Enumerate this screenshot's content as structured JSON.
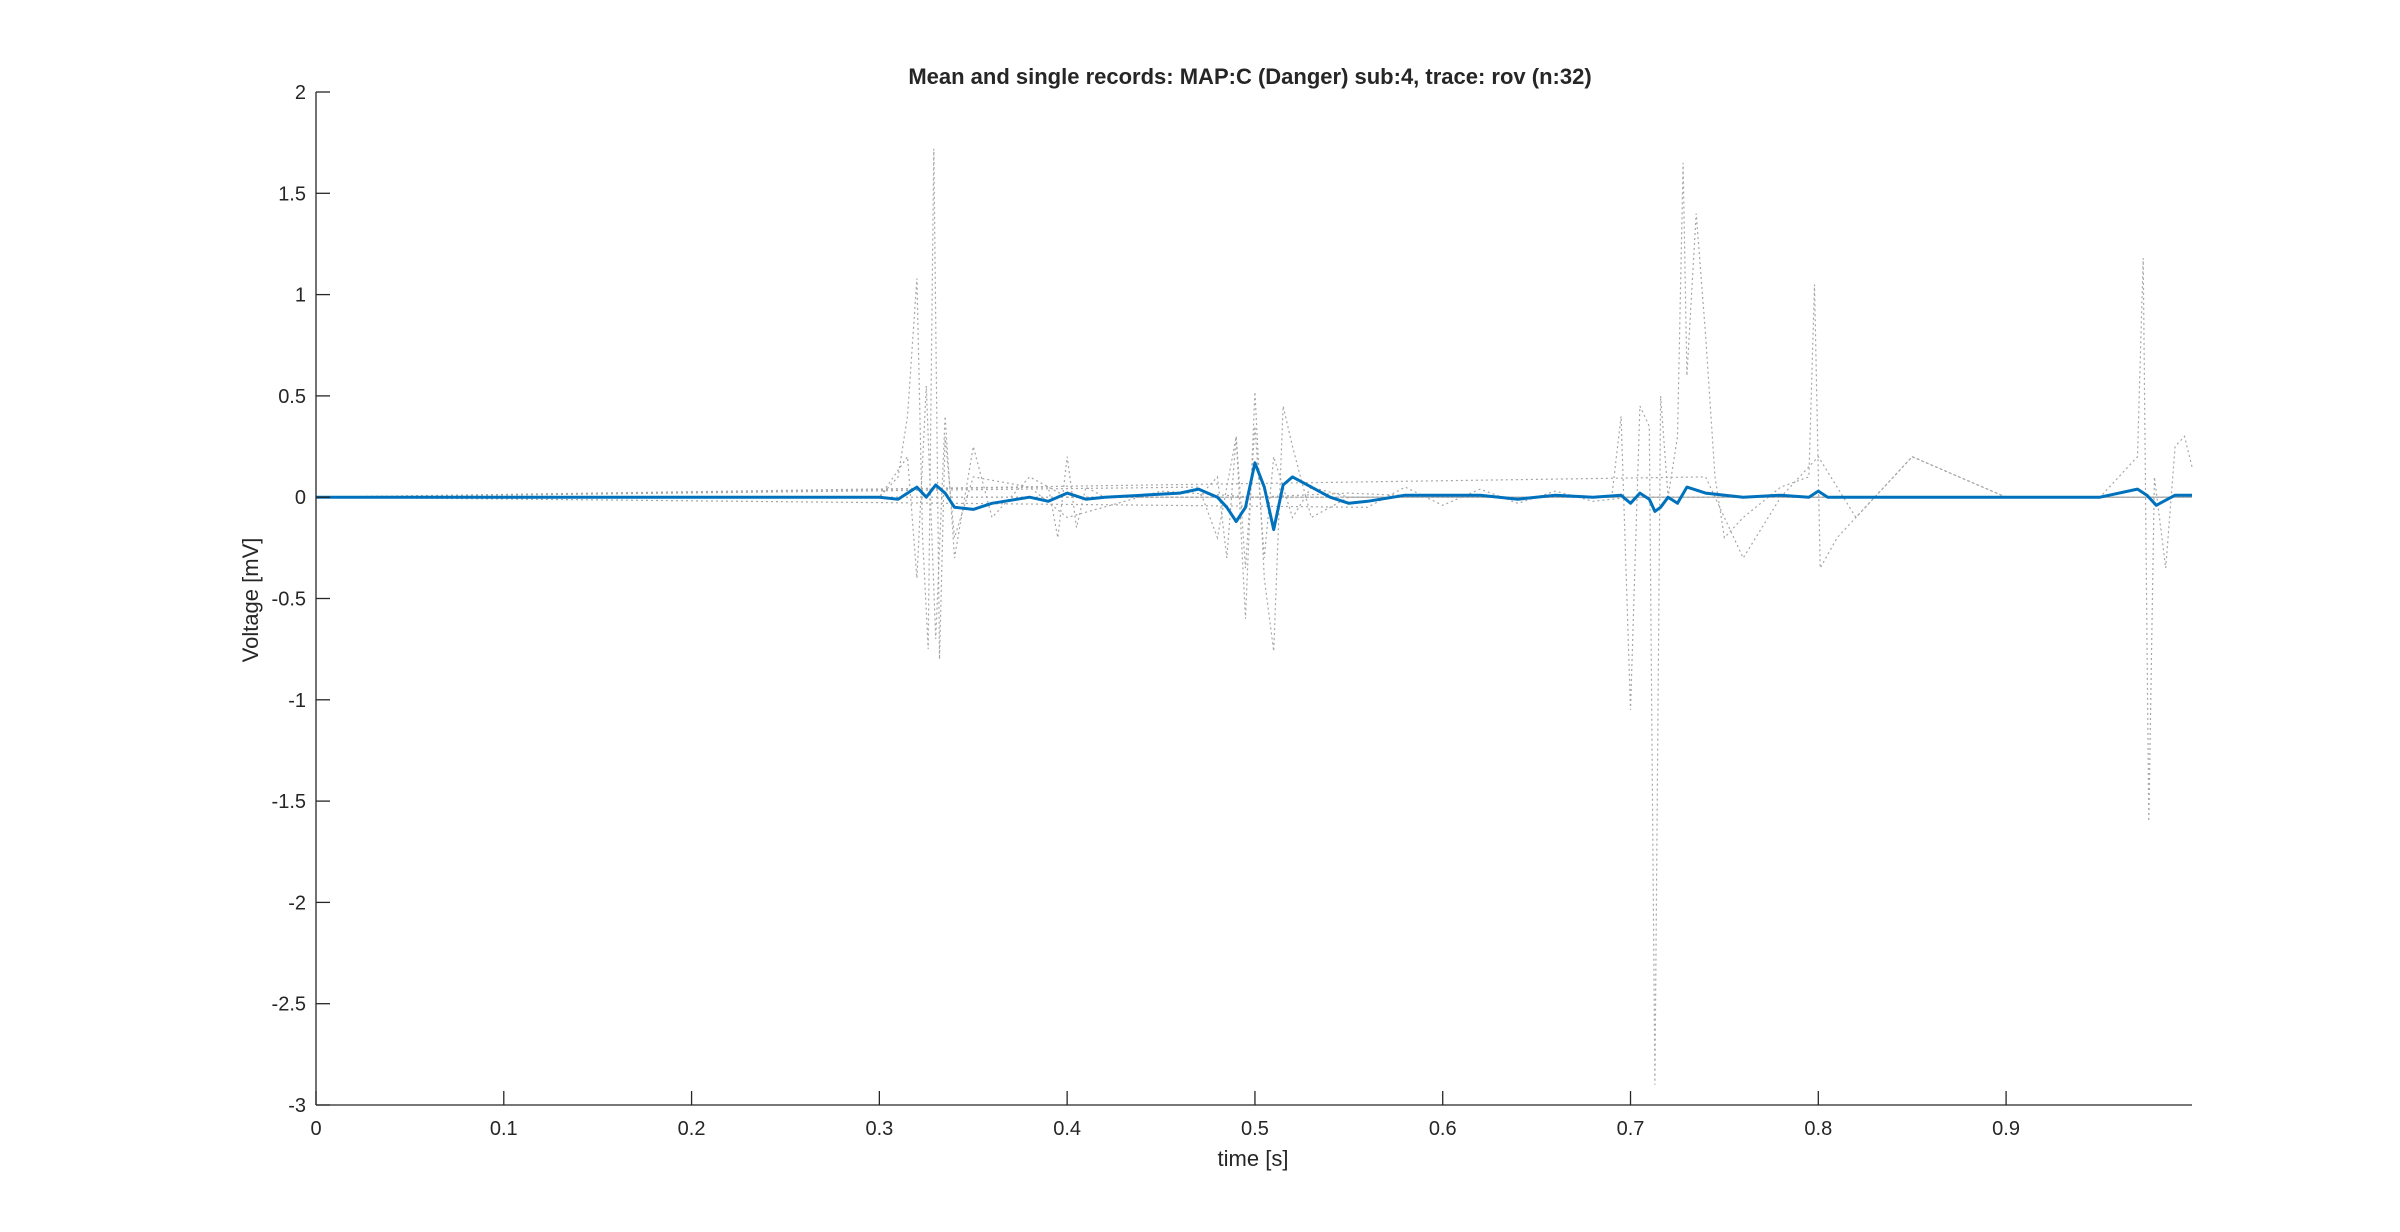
{
  "chart_data": {
    "type": "line",
    "title": "Mean and single records: MAP:C (Danger) sub:4, trace: rov (n:32)",
    "xlabel": "time [s]",
    "ylabel": "Voltage [mV]",
    "xlim": [
      0,
      0.999
    ],
    "ylim": [
      -3,
      2
    ],
    "xticks": [
      0,
      0.1,
      0.2,
      0.3,
      0.4,
      0.5,
      0.6,
      0.7,
      0.8,
      0.9
    ],
    "xtick_labels": [
      "0",
      "0.1",
      "0.2",
      "0.3",
      "0.4",
      "0.5",
      "0.6",
      "0.7",
      "0.8",
      "0.9"
    ],
    "yticks": [
      2,
      1.5,
      1,
      0.5,
      0,
      -0.5,
      -1,
      -1.5,
      -2,
      -2.5,
      -3
    ],
    "ytick_labels": [
      "2",
      "1.5",
      "1",
      "0.5",
      "0",
      "-0.5",
      "-1",
      "-1.5",
      "-2",
      "-2.5",
      "-3"
    ],
    "grid": false,
    "colors": {
      "mean": "#0072BD",
      "single": "#a6a6a6",
      "axis": "#262626"
    },
    "mean_series": {
      "x": [
        0,
        0.1,
        0.2,
        0.3,
        0.31,
        0.315,
        0.32,
        0.325,
        0.33,
        0.335,
        0.34,
        0.35,
        0.36,
        0.38,
        0.39,
        0.4,
        0.41,
        0.42,
        0.44,
        0.46,
        0.47,
        0.48,
        0.485,
        0.49,
        0.495,
        0.5,
        0.505,
        0.51,
        0.515,
        0.52,
        0.53,
        0.54,
        0.55,
        0.56,
        0.58,
        0.6,
        0.62,
        0.64,
        0.66,
        0.68,
        0.695,
        0.7,
        0.705,
        0.71,
        0.713,
        0.716,
        0.72,
        0.725,
        0.73,
        0.74,
        0.76,
        0.78,
        0.795,
        0.8,
        0.805,
        0.82,
        0.85,
        0.9,
        0.95,
        0.97,
        0.975,
        0.98,
        0.99,
        0.999
      ],
      "y": [
        0,
        0,
        0,
        0,
        -0.01,
        0.02,
        0.05,
        0.0,
        0.06,
        0.02,
        -0.05,
        -0.06,
        -0.03,
        0.0,
        -0.02,
        0.02,
        -0.01,
        0.0,
        0.01,
        0.02,
        0.04,
        0.0,
        -0.05,
        -0.12,
        -0.05,
        0.17,
        0.05,
        -0.16,
        0.06,
        0.1,
        0.05,
        0.0,
        -0.03,
        -0.02,
        0.01,
        0.01,
        0.01,
        -0.01,
        0.01,
        0.0,
        0.01,
        -0.03,
        0.02,
        -0.01,
        -0.07,
        -0.05,
        0.0,
        -0.03,
        0.05,
        0.02,
        0.0,
        0.01,
        0.0,
        0.03,
        0.0,
        0.0,
        0.0,
        0.0,
        0.0,
        0.04,
        0.01,
        -0.04,
        0.01,
        0.01
      ]
    },
    "single_records": [
      {
        "x": [
          0,
          0.3,
          0.31,
          0.315,
          0.32,
          0.323,
          0.326,
          0.329,
          0.332,
          0.335,
          0.34,
          0.35,
          0.38,
          0.4,
          0.45,
          0.5,
          0.55,
          0.6,
          0.7,
          0.8,
          0.9,
          0.999
        ],
        "y": [
          0,
          0,
          0.1,
          0.4,
          1.08,
          -0.2,
          -0.75,
          1.72,
          -0.8,
          0.3,
          -0.2,
          0.1,
          0.05,
          -0.1,
          0.03,
          0.0,
          0.02,
          0.0,
          0.0,
          0.0,
          0.0,
          0.0
        ]
      },
      {
        "x": [
          0,
          0.3,
          0.315,
          0.32,
          0.325,
          0.33,
          0.335,
          0.34,
          0.35,
          0.36,
          0.38,
          0.4,
          0.5,
          0.6,
          0.999
        ],
        "y": [
          0,
          0,
          0.2,
          -0.4,
          0.55,
          -0.7,
          0.4,
          -0.3,
          0.25,
          -0.1,
          0.1,
          0.0,
          0.0,
          0.0,
          0.0
        ]
      },
      {
        "x": [
          0,
          0.47,
          0.48,
          0.485,
          0.49,
          0.495,
          0.5,
          0.505,
          0.51,
          0.515,
          0.52,
          0.53,
          0.55,
          0.999
        ],
        "y": [
          0,
          0.0,
          0.1,
          -0.3,
          0.3,
          -0.6,
          0.52,
          -0.4,
          -0.76,
          0.45,
          0.25,
          -0.1,
          0.0,
          0.0
        ]
      },
      {
        "x": [
          0,
          0.47,
          0.48,
          0.49,
          0.495,
          0.5,
          0.505,
          0.51,
          0.52,
          0.53,
          0.55,
          0.999
        ],
        "y": [
          0,
          0.05,
          -0.2,
          0.3,
          -0.35,
          0.35,
          -0.3,
          0.2,
          -0.1,
          0.05,
          0.0,
          0.0
        ]
      },
      {
        "x": [
          0,
          0.69,
          0.695,
          0.7,
          0.705,
          0.71,
          0.713,
          0.716,
          0.72,
          0.725,
          0.728,
          0.73,
          0.735,
          0.74,
          0.745,
          0.75,
          0.76,
          0.78,
          0.795,
          0.798,
          0.801,
          0.81,
          0.85,
          0.9,
          0.999
        ],
        "y": [
          0,
          0.0,
          0.4,
          -1.05,
          0.45,
          0.35,
          -2.9,
          0.5,
          0.0,
          0.3,
          1.65,
          0.6,
          1.4,
          0.8,
          0.1,
          -0.2,
          -0.1,
          0.05,
          0.1,
          1.05,
          -0.35,
          -0.2,
          0.2,
          0.0,
          0.0
        ]
      },
      {
        "x": [
          0,
          0.74,
          0.76,
          0.78,
          0.8,
          0.82,
          0.85,
          0.9,
          0.95,
          0.97,
          0.973,
          0.976,
          0.979,
          0.985,
          0.99,
          0.995,
          0.999
        ],
        "y": [
          0,
          0.1,
          -0.3,
          0.0,
          0.2,
          -0.1,
          0.2,
          0.0,
          0.0,
          0.2,
          1.18,
          -1.6,
          0.1,
          -0.35,
          0.25,
          0.3,
          0.15
        ]
      },
      {
        "x": [
          0,
          0.56,
          0.58,
          0.6,
          0.62,
          0.64,
          0.66,
          0.68,
          0.7,
          0.999
        ],
        "y": [
          0,
          -0.05,
          0.05,
          -0.04,
          0.04,
          -0.03,
          0.03,
          -0.02,
          0.0,
          0.0
        ]
      },
      {
        "x": [
          0,
          0.39,
          0.395,
          0.4,
          0.405,
          0.41,
          0.42,
          0.999
        ],
        "y": [
          0,
          0.05,
          -0.2,
          0.2,
          -0.15,
          0.05,
          0.0,
          0.0
        ]
      }
    ]
  }
}
